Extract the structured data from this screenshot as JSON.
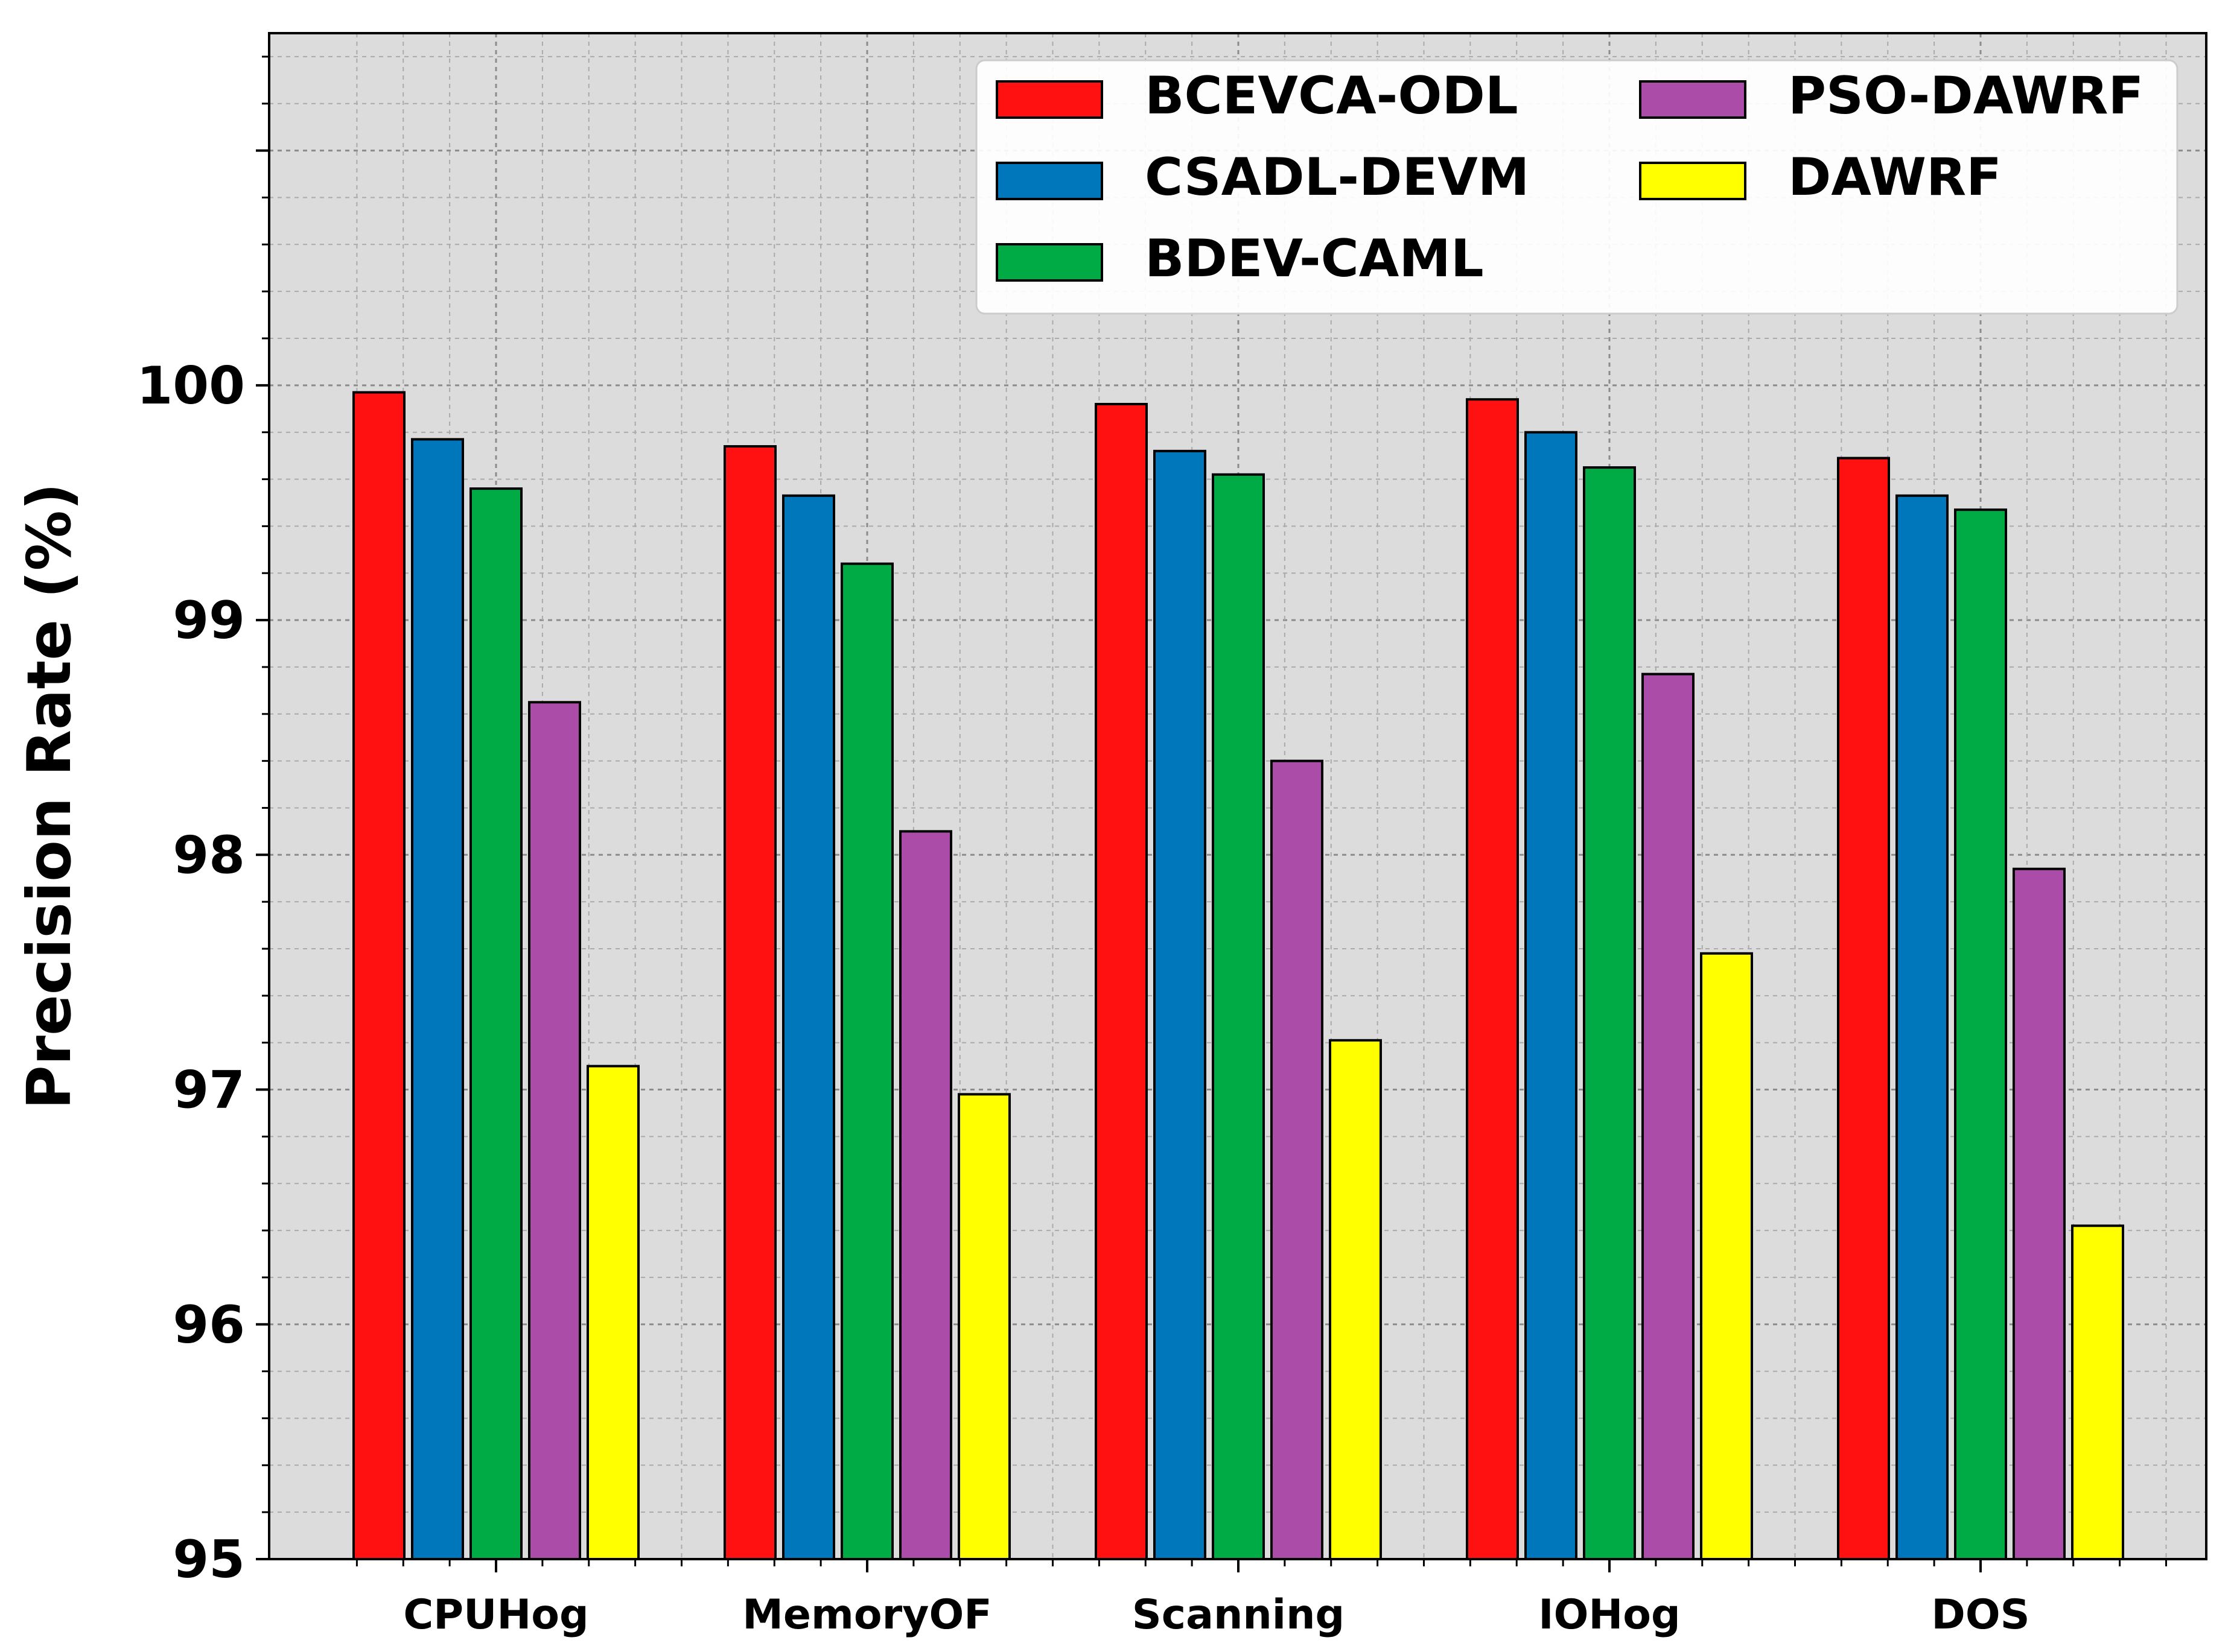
{
  "chart_data": {
    "type": "bar",
    "title": "",
    "xlabel": "",
    "ylabel": "Precision Rate (%)",
    "ylim": [
      95,
      101.5
    ],
    "yticks": [
      "95",
      "96",
      "97",
      "98",
      "99",
      "100"
    ],
    "categories": [
      "CPUHog",
      "MemoryOF",
      "Scanning",
      "IOHog",
      "DOS"
    ],
    "grid": true,
    "legend_position": "top-right",
    "series": [
      {
        "name": "BCEVCA-ODL",
        "color": "#ff1111",
        "values": [
          99.97,
          99.74,
          99.92,
          99.94,
          99.69
        ]
      },
      {
        "name": "CSADL-DEVM",
        "color": "#0077bb",
        "values": [
          99.77,
          99.53,
          99.72,
          99.8,
          99.53
        ]
      },
      {
        "name": "BDEV-CAML",
        "color": "#00aa44",
        "values": [
          99.56,
          99.24,
          99.62,
          99.65,
          99.47
        ]
      },
      {
        "name": "PSO-DAWRF",
        "color": "#aa4ca8",
        "values": [
          98.65,
          98.1,
          98.4,
          98.77,
          97.94
        ]
      },
      {
        "name": "DAWRF",
        "color": "#ffff00",
        "values": [
          97.1,
          96.98,
          97.21,
          97.58,
          96.42
        ]
      }
    ]
  }
}
